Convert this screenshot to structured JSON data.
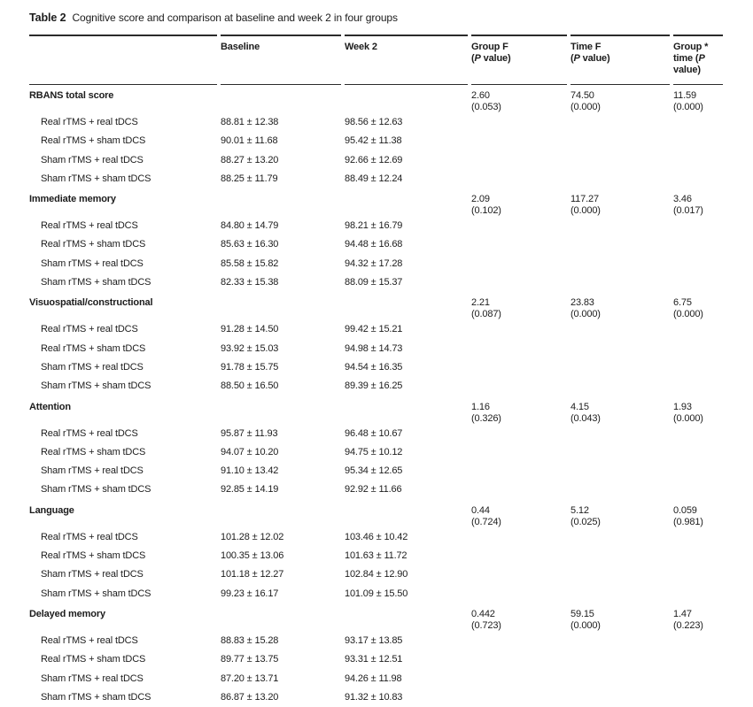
{
  "caption": {
    "label": "Table 2",
    "text": "Cognitive score and comparison at baseline and week 2 in four groups"
  },
  "columns": {
    "baseline": {
      "pre": "Baseline",
      "italic": "",
      "post": ""
    },
    "week2": {
      "pre": "Week 2",
      "italic": "",
      "post": ""
    },
    "group_f": {
      "pre": "Group F\n(",
      "italic": "P",
      "post": " value)"
    },
    "time_f": {
      "pre": "Time F\n(",
      "italic": "P",
      "post": " value)"
    },
    "interaction": {
      "pre": "Group *\ntime (",
      "italic": "P",
      "post": "\nvalue)"
    }
  },
  "sections": [
    {
      "name": "RBANS total score",
      "stats": {
        "group_f": "2.60",
        "group_p": "(0.053)",
        "time_f": "74.50",
        "time_p": "(0.000)",
        "inter_f": "11.59",
        "inter_p": "(0.000)"
      },
      "rows": [
        {
          "label": "Real rTMS + real tDCS",
          "baseline": "88.81 ± 12.38",
          "week2": "98.56 ± 12.63"
        },
        {
          "label": "Real rTMS + sham tDCS",
          "baseline": "90.01 ± 11.68",
          "week2": "95.42 ± 11.38"
        },
        {
          "label": "Sham rTMS + real tDCS",
          "baseline": "88.27 ± 13.20",
          "week2": "92.66 ± 12.69"
        },
        {
          "label": "Sham rTMS + sham tDCS",
          "baseline": "88.25 ± 11.79",
          "week2": "88.49 ± 12.24"
        }
      ]
    },
    {
      "name": "Immediate memory",
      "stats": {
        "group_f": "2.09",
        "group_p": "(0.102)",
        "time_f": "117.27",
        "time_p": "(0.000)",
        "inter_f": "3.46",
        "inter_p": "(0.017)"
      },
      "rows": [
        {
          "label": "Real rTMS + real tDCS",
          "baseline": "84.80 ± 14.79",
          "week2": "98.21 ± 16.79"
        },
        {
          "label": "Real rTMS + sham tDCS",
          "baseline": "85.63 ± 16.30",
          "week2": "94.48 ± 16.68"
        },
        {
          "label": "Sham rTMS + real tDCS",
          "baseline": "85.58 ± 15.82",
          "week2": "94.32 ± 17.28"
        },
        {
          "label": "Sham rTMS + sham tDCS",
          "baseline": "82.33 ± 15.38",
          "week2": "88.09 ± 15.37"
        }
      ]
    },
    {
      "name": "Visuospatial/constructional",
      "stats": {
        "group_f": "2.21",
        "group_p": "(0.087)",
        "time_f": "23.83",
        "time_p": "(0.000)",
        "inter_f": "6.75",
        "inter_p": "(0.000)"
      },
      "rows": [
        {
          "label": "Real rTMS + real tDCS",
          "baseline": "91.28 ± 14.50",
          "week2": "99.42 ± 15.21"
        },
        {
          "label": "Real rTMS + sham tDCS",
          "baseline": "93.92 ± 15.03",
          "week2": "94.98 ± 14.73"
        },
        {
          "label": "Sham rTMS + real tDCS",
          "baseline": "91.78 ± 15.75",
          "week2": "94.54 ± 16.35"
        },
        {
          "label": "Sham rTMS + sham tDCS",
          "baseline": "88.50 ± 16.50",
          "week2": "89.39 ± 16.25"
        }
      ]
    },
    {
      "name": "Attention",
      "stats": {
        "group_f": "1.16",
        "group_p": "(0.326)",
        "time_f": "4.15",
        "time_p": "(0.043)",
        "inter_f": "1.93",
        "inter_p": "(0.000)"
      },
      "rows": [
        {
          "label": "Real rTMS + real tDCS",
          "baseline": "95.87 ± 11.93",
          "week2": "96.48 ± 10.67"
        },
        {
          "label": "Real rTMS + sham tDCS",
          "baseline": "94.07 ± 10.20",
          "week2": "94.75 ± 10.12"
        },
        {
          "label": "Sham rTMS + real tDCS",
          "baseline": "91.10 ± 13.42",
          "week2": "95.34 ± 12.65"
        },
        {
          "label": "Sham rTMS + sham tDCS",
          "baseline": "92.85 ± 14.19",
          "week2": "92.92 ± 11.66"
        }
      ]
    },
    {
      "name": "Language",
      "stats": {
        "group_f": "0.44",
        "group_p": "(0.724)",
        "time_f": "5.12",
        "time_p": "(0.025)",
        "inter_f": "0.059",
        "inter_p": "(0.981)"
      },
      "rows": [
        {
          "label": "Real rTMS + real tDCS",
          "baseline": "101.28 ± 12.02",
          "week2": "103.46 ± 10.42"
        },
        {
          "label": "Real rTMS + sham tDCS",
          "baseline": "100.35 ± 13.06",
          "week2": "101.63 ± 11.72"
        },
        {
          "label": "Sham rTMS + real tDCS",
          "baseline": "101.18 ± 12.27",
          "week2": "102.84 ± 12.90"
        },
        {
          "label": "Sham rTMS + sham tDCS",
          "baseline": "99.23 ± 16.17",
          "week2": "101.09 ± 15.50"
        }
      ]
    },
    {
      "name": "Delayed memory",
      "stats": {
        "group_f": "0.442",
        "group_p": "(0.723)",
        "time_f": "59.15",
        "time_p": "(0.000)",
        "inter_f": "1.47",
        "inter_p": "(0.223)"
      },
      "rows": [
        {
          "label": "Real rTMS + real tDCS",
          "baseline": "88.83 ± 15.28",
          "week2": "93.17 ± 13.85"
        },
        {
          "label": "Real rTMS + sham tDCS",
          "baseline": "89.77 ± 13.75",
          "week2": "93.31 ± 12.51"
        },
        {
          "label": "Sham rTMS + real tDCS",
          "baseline": "87.20 ± 13.71",
          "week2": "94.26 ± 11.98"
        },
        {
          "label": "Sham rTMS + sham tDCS",
          "baseline": "86.87 ± 13.20",
          "week2": "91.32 ± 10.83"
        }
      ]
    }
  ]
}
